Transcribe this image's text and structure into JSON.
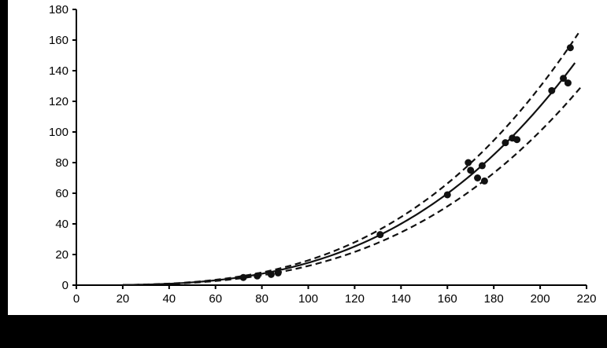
{
  "frame": {
    "background_color": "#000000",
    "panel_color": "#ffffff"
  },
  "chart_data": {
    "type": "scatter",
    "title": "",
    "xlabel": "",
    "ylabel": "",
    "xlim": [
      0,
      220
    ],
    "ylim": [
      0,
      180
    ],
    "x_ticks": [
      0,
      20,
      40,
      60,
      80,
      100,
      120,
      140,
      160,
      180,
      200,
      220
    ],
    "y_ticks": [
      0,
      20,
      40,
      60,
      80,
      100,
      120,
      140,
      160,
      180
    ],
    "grid": false,
    "legend": "none",
    "points": [
      [
        72,
        5
      ],
      [
        78,
        6
      ],
      [
        84,
        7
      ],
      [
        87,
        8
      ],
      [
        131,
        33
      ],
      [
        160,
        59
      ],
      [
        169,
        80
      ],
      [
        170,
        75
      ],
      [
        173,
        70
      ],
      [
        175,
        78
      ],
      [
        176,
        68
      ],
      [
        185,
        93
      ],
      [
        188,
        96
      ],
      [
        190,
        95
      ],
      [
        205,
        127
      ],
      [
        210,
        135
      ],
      [
        212,
        132
      ],
      [
        213,
        155
      ]
    ],
    "fit_curve": {
      "model": "power",
      "a": 1.46e-05,
      "b": 3,
      "x_start": 20,
      "x_end": 215,
      "style": "solid"
    },
    "confidence_bands": {
      "upper_factor": 1.11,
      "lower_factor": 0.86,
      "x_start": 20,
      "upper_x_end": 217,
      "lower_x_end": 219,
      "style": "dashed"
    },
    "styles": {
      "point_color": "#111111",
      "line_color": "#111111",
      "axis_color": "#000000",
      "dash_pattern": "8,5",
      "point_radius": 4.5,
      "line_width": 2.2
    }
  }
}
